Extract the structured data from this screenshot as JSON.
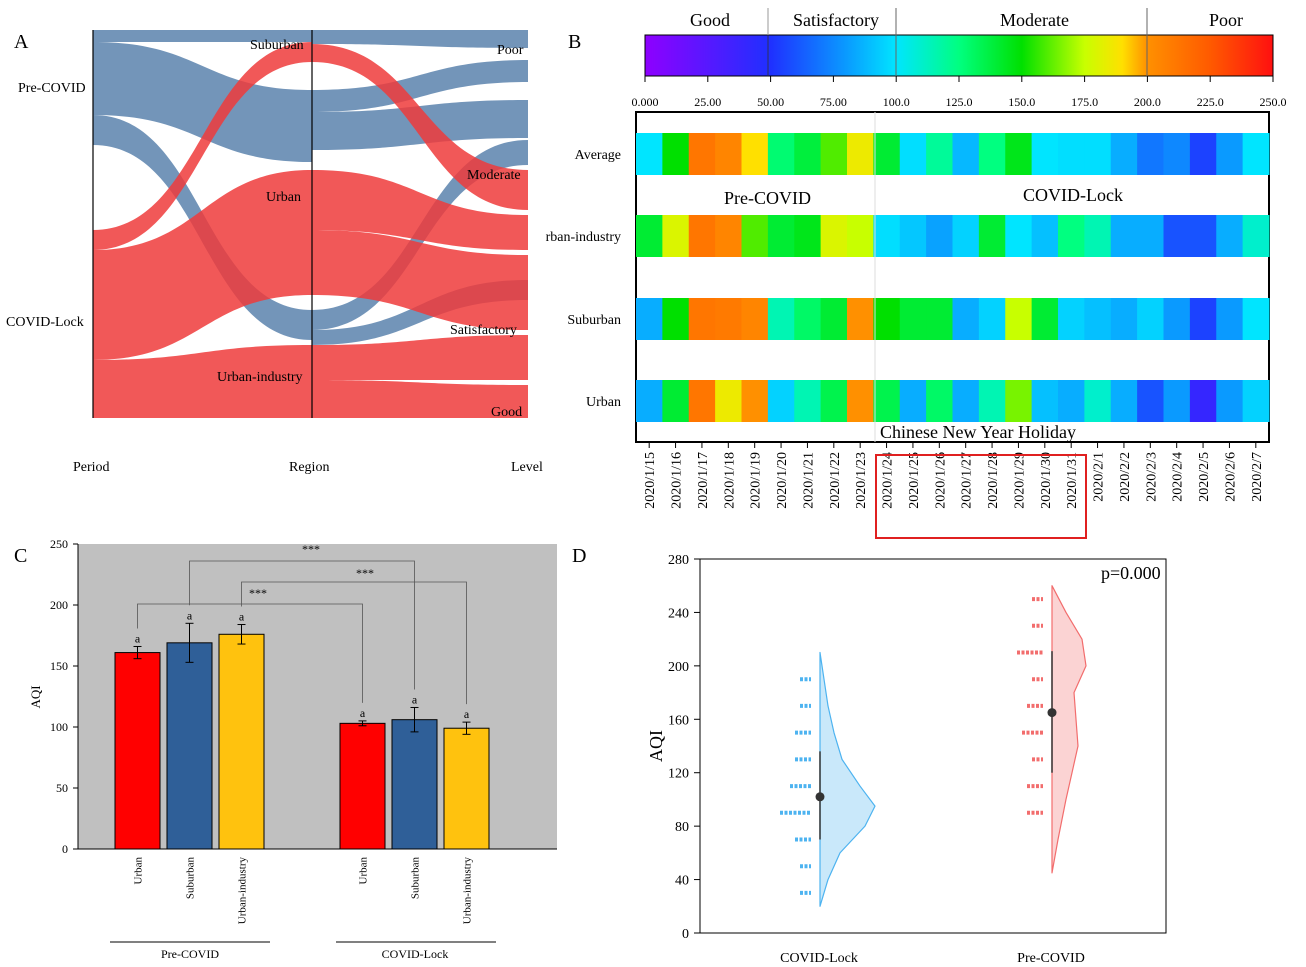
{
  "panels": {
    "a": "A",
    "b": "B",
    "c": "C",
    "d": "D"
  },
  "chart_data": [
    {
      "type": "sankey",
      "panel": "A",
      "nodes": {
        "period": [
          "Pre-COVID",
          "COVID-Lock"
        ],
        "region": [
          "Suburban",
          "Urban",
          "Urban-industry"
        ],
        "level": [
          "Poor",
          "Moderate",
          "Satisfactory",
          "Good"
        ]
      },
      "axis_labels": [
        "Period",
        "Region",
        "Level"
      ],
      "colors": {
        "pre_covid": "#5b82ad",
        "covid_lock": "#ee3b3b"
      }
    },
    {
      "type": "heatmap",
      "panel": "B",
      "rows": [
        "Average",
        "rban-industry",
        "Suburban",
        "Urban"
      ],
      "columns": [
        "2020/1/15",
        "2020/1/16",
        "2020/1/17",
        "2020/1/18",
        "2020/1/19",
        "2020/1/20",
        "2020/1/21",
        "2020/1/22",
        "2020/1/23",
        "2020/1/24",
        "2020/1/25",
        "2020/1/26",
        "2020/1/27",
        "2020/1/28",
        "2020/1/29",
        "2020/1/30",
        "2020/1/31",
        "2020/2/1",
        "2020/2/2",
        "2020/2/3",
        "2020/2/4",
        "2020/2/5",
        "2020/2/6",
        "2020/2/7"
      ],
      "values": [
        [
          100,
          150,
          212,
          205,
          190,
          128,
          138,
          160,
          185,
          140,
          98,
          120,
          88,
          125,
          145,
          100,
          98,
          98,
          85,
          70,
          75,
          55,
          80,
          100
        ],
        [
          140,
          180,
          212,
          205,
          160,
          140,
          145,
          180,
          175,
          98,
          92,
          82,
          95,
          140,
          100,
          90,
          125,
          115,
          85,
          85,
          60,
          60,
          85,
          110
        ],
        [
          85,
          150,
          212,
          210,
          205,
          115,
          130,
          140,
          200,
          150,
          140,
          140,
          85,
          95,
          175,
          140,
          95,
          90,
          85,
          95,
          80,
          55,
          80,
          100
        ],
        [
          85,
          140,
          212,
          185,
          200,
          95,
          115,
          135,
          200,
          135,
          85,
          130,
          85,
          115,
          165,
          90,
          85,
          110,
          85,
          60,
          80,
          40,
          80,
          95
        ]
      ],
      "annotations": [
        "Pre-COVID",
        "COVID-Lock",
        "Chinese New Year Holiday"
      ],
      "colorbar": {
        "ticks": [
          "0.000",
          "25.00",
          "50.00",
          "75.00",
          "100.0",
          "125.0",
          "150.0",
          "175.0",
          "200.0",
          "225.0",
          "250.0"
        ],
        "categories": [
          "Good",
          "Satisfactory",
          "Moderate",
          "Poor"
        ],
        "range": [
          0,
          250
        ]
      }
    },
    {
      "type": "bar",
      "panel": "C",
      "ylabel": "AQI",
      "ylim": [
        0,
        250
      ],
      "yticks": [
        "0",
        "50",
        "100",
        "150",
        "200",
        "250"
      ],
      "groups": [
        "Pre-COVID",
        "COVID-Lock"
      ],
      "categories": [
        "Urban",
        "Suburban",
        "Urban-industry"
      ],
      "series": [
        {
          "group": "Pre-COVID",
          "values": [
            161,
            169,
            176
          ],
          "errors": [
            5,
            16,
            8
          ]
        },
        {
          "group": "COVID-Lock",
          "values": [
            103,
            106,
            99
          ],
          "errors": [
            2,
            10,
            5
          ]
        }
      ],
      "bar_label": "a",
      "significance": "***",
      "colors": [
        "#ff0000",
        "#2f5f98",
        "#ffc20e"
      ],
      "background": "#c0c0c0"
    },
    {
      "type": "violin",
      "panel": "D",
      "ylabel": "AQI",
      "ylim": [
        0,
        280
      ],
      "yticks": [
        "0",
        "40",
        "80",
        "120",
        "160",
        "200",
        "240",
        "280"
      ],
      "groups": [
        "COVID-Lock",
        "Pre-COVID"
      ],
      "stats": [
        {
          "name": "COVID-Lock",
          "mean": 102,
          "lower": 70,
          "upper": 136,
          "min": 20,
          "max": 210,
          "color": "#4db3f0"
        },
        {
          "name": "Pre-COVID",
          "mean": 165,
          "lower": 120,
          "upper": 211,
          "min": 45,
          "max": 260,
          "color": "#f26d6d"
        }
      ],
      "points": {
        "COVID-Lock": [
          [
            30,
            1
          ],
          [
            50,
            1
          ],
          [
            70,
            2
          ],
          [
            90,
            5
          ],
          [
            110,
            3
          ],
          [
            130,
            2
          ],
          [
            150,
            2
          ],
          [
            170,
            1
          ],
          [
            190,
            1
          ]
        ],
        "Pre-COVID": [
          [
            90,
            2
          ],
          [
            110,
            2
          ],
          [
            130,
            1
          ],
          [
            150,
            3
          ],
          [
            170,
            2
          ],
          [
            190,
            1
          ],
          [
            210,
            4
          ],
          [
            230,
            1
          ],
          [
            250,
            1
          ]
        ]
      },
      "annotation": "p=0.000"
    }
  ]
}
